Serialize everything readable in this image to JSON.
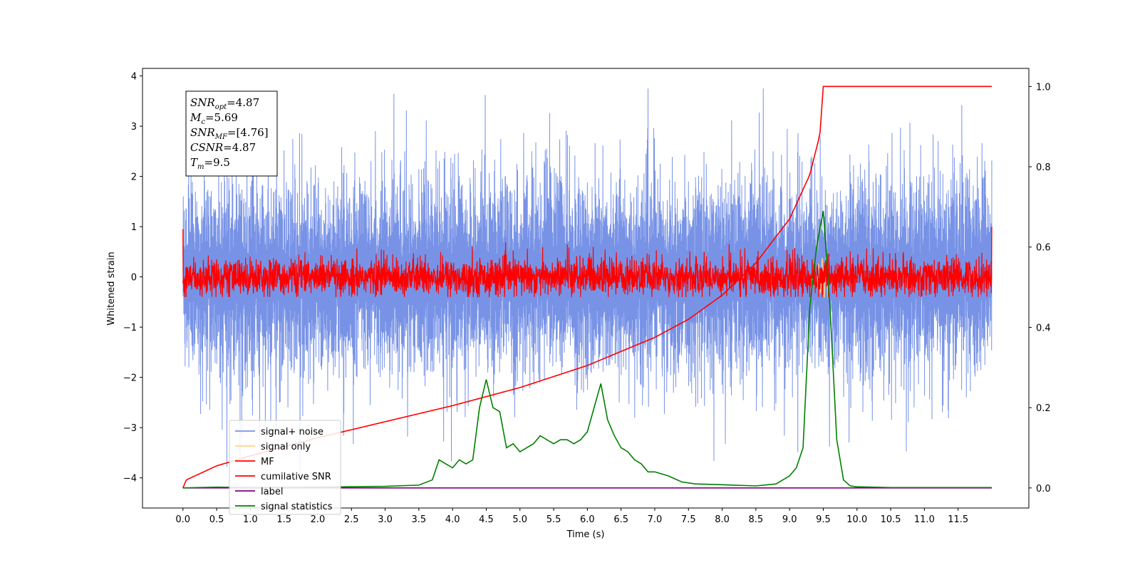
{
  "chart_data": {
    "type": "line",
    "xlabel": "Time (s)",
    "ylabel": "Whitened strain",
    "xlim": [
      -0.6,
      12.55
    ],
    "ylim": [
      -4.6,
      4.15
    ],
    "y2lim": [
      -0.05,
      1.045
    ],
    "xticks": [
      "0.0",
      "0.5",
      "1.0",
      "1.5",
      "2.0",
      "2.5",
      "3.0",
      "3.5",
      "4.0",
      "4.5",
      "5.0",
      "5.5",
      "6.0",
      "6.5",
      "7.0",
      "7.5",
      "8.0",
      "8.5",
      "9.0",
      "9.5",
      "10.0",
      "10.5",
      "11.0",
      "11.5"
    ],
    "yticks": [
      "4",
      "3",
      "2",
      "1",
      "0",
      "−1",
      "−2",
      "−3",
      "−4"
    ],
    "y2ticks": [
      "1.0",
      "0.8",
      "0.6",
      "0.4",
      "0.2",
      "0.0"
    ],
    "annotation": [
      {
        "base": "SNR",
        "sub": "opt",
        "rest": "=4.87"
      },
      {
        "base": "M",
        "sub": "c",
        "rest": "=5.69"
      },
      {
        "base": "SNR",
        "sub": "MF",
        "rest": "=[4.76]"
      },
      {
        "base": "CSNR",
        "sub": "",
        "rest": "=4.87"
      },
      {
        "base": "T",
        "sub": "m",
        "rest": "=9.5"
      }
    ],
    "legend": {
      "placement": "lower-left",
      "entries": [
        {
          "name": "signal+ noise",
          "color": "#7893e6"
        },
        {
          "name": "signal only",
          "color": "#ffd27f"
        },
        {
          "name": "MF",
          "color": "#ff0000"
        },
        {
          "name": "cumilative SNR",
          "color": "#ff0000"
        },
        {
          "name": "label",
          "color": "#800080"
        },
        {
          "name": "signal statistics",
          "color": "#008000"
        }
      ]
    },
    "series": [
      {
        "name": "signal+ noise",
        "axis": "left",
        "t_start": 0.0,
        "t_end": 12.0,
        "center": 0.0,
        "noise_scale": 1.0
      },
      {
        "name": "MF",
        "axis": "left",
        "t_start": 0.0,
        "t_end": 12.0,
        "center": 0.0,
        "noise_scale": 0.18
      },
      {
        "name": "cumilative SNR",
        "axis": "right",
        "x": [
          0.0,
          0.05,
          0.5,
          1.0,
          2.0,
          3.0,
          4.0,
          5.0,
          6.0,
          7.0,
          7.5,
          8.0,
          8.5,
          9.0,
          9.3,
          9.45,
          9.5,
          12.0
        ],
        "y": [
          0.0,
          0.02,
          0.055,
          0.08,
          0.125,
          0.165,
          0.205,
          0.25,
          0.305,
          0.375,
          0.42,
          0.48,
          0.56,
          0.67,
          0.78,
          0.88,
          1.0,
          1.0
        ]
      },
      {
        "name": "label",
        "axis": "right",
        "x": [
          0.0,
          12.0
        ],
        "y": [
          0.0,
          0.0
        ]
      },
      {
        "name": "signal statistics",
        "axis": "right",
        "x": [
          0.0,
          0.5,
          1.0,
          2.0,
          3.0,
          3.5,
          3.7,
          3.8,
          3.9,
          4.0,
          4.1,
          4.2,
          4.3,
          4.4,
          4.5,
          4.6,
          4.7,
          4.8,
          4.9,
          5.0,
          5.1,
          5.2,
          5.3,
          5.4,
          5.5,
          5.6,
          5.7,
          5.8,
          5.9,
          6.0,
          6.1,
          6.2,
          6.3,
          6.4,
          6.5,
          6.6,
          6.7,
          6.8,
          6.9,
          7.0,
          7.2,
          7.4,
          7.6,
          8.0,
          8.5,
          8.8,
          9.0,
          9.1,
          9.2,
          9.3,
          9.4,
          9.5,
          9.6,
          9.7,
          9.8,
          9.9,
          10.0,
          10.5,
          12.0
        ],
        "y": [
          0.0,
          0.002,
          0.001,
          0.002,
          0.004,
          0.007,
          0.02,
          0.07,
          0.06,
          0.05,
          0.07,
          0.06,
          0.07,
          0.2,
          0.27,
          0.2,
          0.19,
          0.1,
          0.11,
          0.09,
          0.1,
          0.11,
          0.13,
          0.12,
          0.11,
          0.12,
          0.12,
          0.11,
          0.12,
          0.14,
          0.2,
          0.26,
          0.17,
          0.13,
          0.1,
          0.09,
          0.07,
          0.06,
          0.04,
          0.04,
          0.03,
          0.015,
          0.01,
          0.008,
          0.005,
          0.01,
          0.03,
          0.05,
          0.1,
          0.45,
          0.6,
          0.69,
          0.45,
          0.12,
          0.02,
          0.005,
          0.003,
          0.001,
          0.001
        ]
      },
      {
        "name": "signal only",
        "axis": "left",
        "t_start": 9.3,
        "t_end": 9.6,
        "center": 0.0,
        "noise_scale": 0.4
      }
    ]
  },
  "colors": {
    "noise": "#7893e6",
    "signal_only": "#ffd27f",
    "mf": "#ff0000",
    "csnr": "#ff0000",
    "label": "#800080",
    "stats": "#008000"
  }
}
